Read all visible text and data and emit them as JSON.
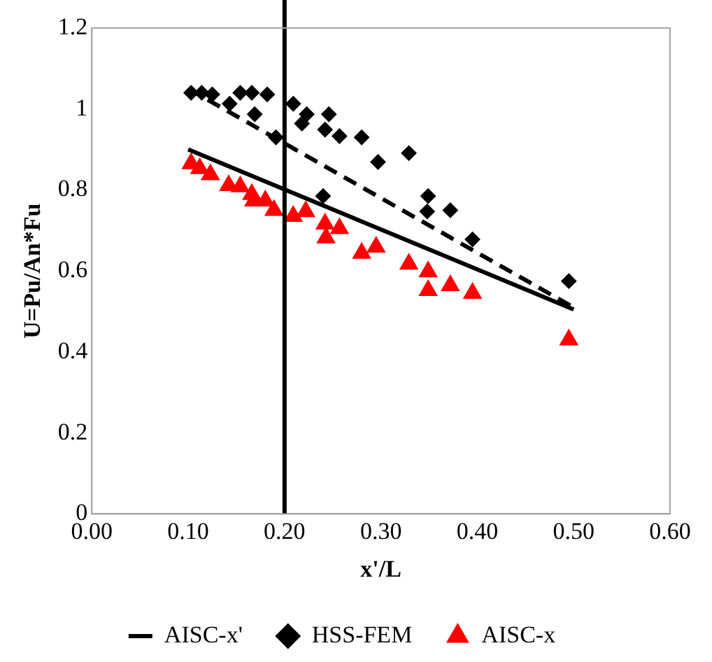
{
  "chart_data": {
    "type": "scatter",
    "xlabel": "x'/L",
    "ylabel": "U=Pu/An*Fu",
    "xlim": [
      0,
      0.6
    ],
    "xticks": [
      {
        "value": 0,
        "label": "0.00"
      },
      {
        "value": 0.1,
        "label": "0.10"
      },
      {
        "value": 0.2,
        "label": "0.20"
      },
      {
        "value": 0.3,
        "label": "0.30"
      },
      {
        "value": 0.4,
        "label": "0.40"
      },
      {
        "value": 0.5,
        "label": "0.50"
      },
      {
        "value": 0.6,
        "label": "0.60"
      }
    ],
    "ylim": [
      0,
      1.2
    ],
    "yticks": [
      0,
      0.2,
      0.4,
      0.6,
      0.8,
      1,
      1.2
    ],
    "grid": false,
    "legend": "bottom",
    "ref_lines": [
      {
        "axis": "x",
        "value": 0.2,
        "color": "#000000"
      }
    ],
    "series": [
      {
        "name": "AISC-x'",
        "type": "line",
        "color": "#000000",
        "marker": "none",
        "line_style": "solid",
        "x": [
          0.1,
          0.5
        ],
        "values": [
          0.9,
          0.505
        ]
      },
      {
        "name": "HSS-FEM",
        "type": "scatter",
        "color": "#000000",
        "marker": "diamond",
        "x": [
          0.103,
          0.114,
          0.125,
          0.143,
          0.154,
          0.166,
          0.182,
          0.169,
          0.191,
          0.209,
          0.223,
          0.218,
          0.246,
          0.242,
          0.257,
          0.28,
          0.297,
          0.329,
          0.24,
          0.349,
          0.348,
          0.372,
          0.395,
          0.495
        ],
        "values": [
          1.04,
          1.04,
          1.036,
          1.013,
          1.04,
          1.04,
          1.036,
          0.987,
          0.93,
          1.013,
          0.987,
          0.964,
          0.987,
          0.949,
          0.933,
          0.93,
          0.869,
          0.891,
          0.785,
          0.785,
          0.747,
          0.75,
          0.678,
          0.575
        ]
      },
      {
        "name": "AISC-x",
        "type": "scatter",
        "color": "#ff0000",
        "marker": "triangle",
        "x": [
          0.103,
          0.112,
          0.123,
          0.142,
          0.154,
          0.166,
          0.168,
          0.18,
          0.189,
          0.209,
          0.222,
          0.242,
          0.243,
          0.257,
          0.28,
          0.295,
          0.329,
          0.349,
          0.349,
          0.372,
          0.395,
          0.495
        ],
        "values": [
          0.865,
          0.853,
          0.838,
          0.811,
          0.808,
          0.789,
          0.773,
          0.773,
          0.75,
          0.735,
          0.747,
          0.716,
          0.682,
          0.705,
          0.644,
          0.659,
          0.617,
          0.598,
          0.552,
          0.564,
          0.545,
          0.43
        ]
      },
      {
        "type": "line",
        "color": "#000000",
        "marker": "none",
        "line_style": "dashed",
        "x": [
          0.1,
          0.5
        ],
        "values": [
          1.05,
          0.51
        ]
      }
    ]
  }
}
